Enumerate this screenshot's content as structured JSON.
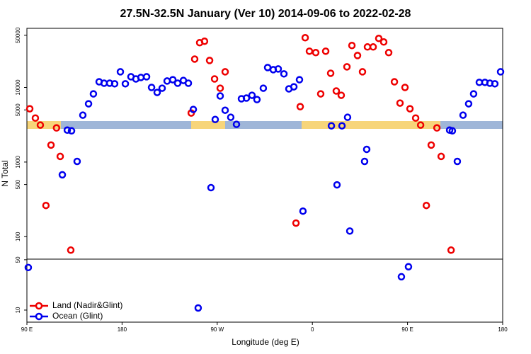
{
  "chart_data": [
    {
      "type": "scatter",
      "title": "27.5N-32.5N January (Ver 10)   2014-09-06 to 2022-02-28",
      "ylabel": "N Total",
      "xlim": [
        90,
        540
      ],
      "ylim": [
        50,
        62000
      ],
      "yscale": "log",
      "yticks": [
        100,
        500,
        1000,
        5000,
        10000,
        50000
      ],
      "series": [
        {
          "name": "Land (Nadir&Glint)",
          "color": "#ee0000",
          "x": [
            92.7,
            98,
            102.7,
            108,
            112.8,
            118,
            121.5,
            131.5,
            245.4,
            248.7,
            253.4,
            258,
            262.8,
            267.5,
            272.8,
            277.5,
            344.5,
            348.5,
            353.2,
            357.2,
            363.2,
            367.9,
            372.6,
            377.3,
            382.6,
            387.3,
            392.7,
            397.4,
            402.7,
            407.4,
            412.1,
            417.5,
            422.8,
            427.5,
            432.2,
            437.6,
            442.9,
            447.6,
            452.3,
            457.7,
            462.4,
            467.8,
            472.4,
            477.8,
            481.8,
            491.2
          ],
          "values": [
            5180,
            3890,
            3130,
            262,
            1690,
            2870,
            1190,
            66,
            4540,
            24000,
            39800,
            41600,
            23000,
            13000,
            9770,
            16200,
            152,
            5530,
            46400,
            30600,
            29300,
            8200,
            30600,
            15500,
            8960,
            7850,
            18900,
            36500,
            26800,
            16200,
            34900,
            34900,
            45400,
            40700,
            29300,
            11900,
            6170,
            10000,
            5180,
            3890,
            3130,
            262,
            1690,
            2870,
            1190,
            66
          ]
        },
        {
          "name": "Ocean (Glint)",
          "color": "#0000ee",
          "x": [
            123.5,
            128.2,
            132.2,
            137.5,
            142.9,
            148.3,
            152.9,
            158.3,
            163,
            168.3,
            173,
            178.4,
            183.1,
            188.4,
            193.1,
            197.8,
            203.2,
            207.9,
            213.2,
            217.9,
            222.6,
            228,
            232.6,
            238,
            242.7,
            247.4,
            264.1,
            268.1,
            272.8,
            277.5,
            282.8,
            288.2,
            292.9,
            297.6,
            302.9,
            307.6,
            313.6,
            317.7,
            323,
            327.7,
            333.1,
            337.8,
            342.5,
            347.8,
            351.1,
            378,
            383.3,
            388,
            393.3,
            395.4,
            409.4,
            411.4,
            489.8,
            492.4,
            497.1,
            502.5,
            507.8,
            512.5,
            517.9,
            523.2,
            527.9,
            532.6,
            538
          ],
          "values": [
            675,
            2680,
            2620,
            1020,
            4250,
            6040,
            8200,
            11900,
            11400,
            11400,
            11200,
            16200,
            11200,
            13900,
            13000,
            13600,
            13900,
            10000,
            8570,
            9770,
            12200,
            12700,
            11400,
            12400,
            11400,
            5070,
            454,
            3720,
            7690,
            4950,
            3980,
            3200,
            7050,
            7200,
            7850,
            6880,
            9770,
            18500,
            17300,
            17700,
            15200,
            9570,
            10200,
            12700,
            220,
            3060,
            495,
            3060,
            3980,
            119,
            1020,
            1480,
            2680,
            2620,
            1020,
            4250,
            6040,
            8200,
            11700,
            11700,
            11400,
            11200,
            16200
          ]
        }
      ]
    },
    {
      "type": "scatter",
      "xlabel": "Longitude (deg E)",
      "xlim": [
        90,
        540
      ],
      "xticks": [
        {
          "value": 90,
          "label": "90 E"
        },
        180,
        {
          "value": 270,
          "label": "90 W"
        },
        {
          "value": 360,
          "label": "0"
        },
        {
          "value": 450,
          "label": "90 E"
        },
        {
          "value": 540,
          "label": "180"
        }
      ],
      "ylim": [
        6.8,
        51
      ],
      "yscale": "log",
      "yticks": [
        10,
        50
      ],
      "legend": "lower left",
      "series": [
        {
          "color": "#0000ee",
          "x": [
            91.3,
            252,
            444.2,
            450.9
          ],
          "values": [
            39,
            10.7,
            29,
            40
          ]
        }
      ]
    }
  ]
}
